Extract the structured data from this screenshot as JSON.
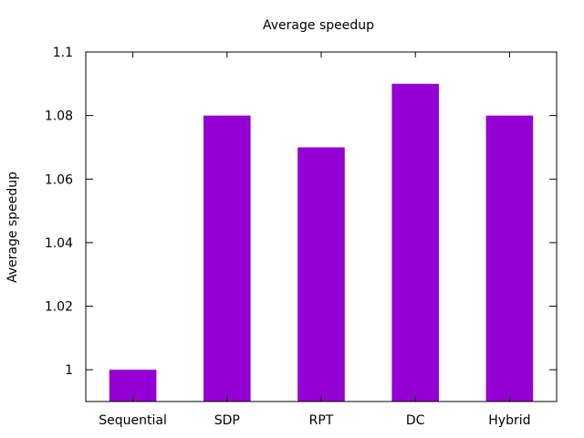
{
  "chart_data": {
    "type": "bar",
    "title": "Average speedup",
    "ylabel": "Average speedup",
    "xlabel": "",
    "categories": [
      "Sequential",
      "SDP",
      "RPT",
      "DC",
      "Hybrid"
    ],
    "values": [
      1.0,
      1.08,
      1.07,
      1.09,
      1.08
    ],
    "ylim": [
      0.99,
      1.1
    ],
    "yticks": [
      1,
      1.02,
      1.04,
      1.06,
      1.08,
      1.1
    ],
    "ytick_labels": [
      "1",
      "1.02",
      "1.04",
      "1.06",
      "1.08",
      "1.1"
    ],
    "bar_color": "#9400d3",
    "grid": false,
    "legend": "none"
  }
}
